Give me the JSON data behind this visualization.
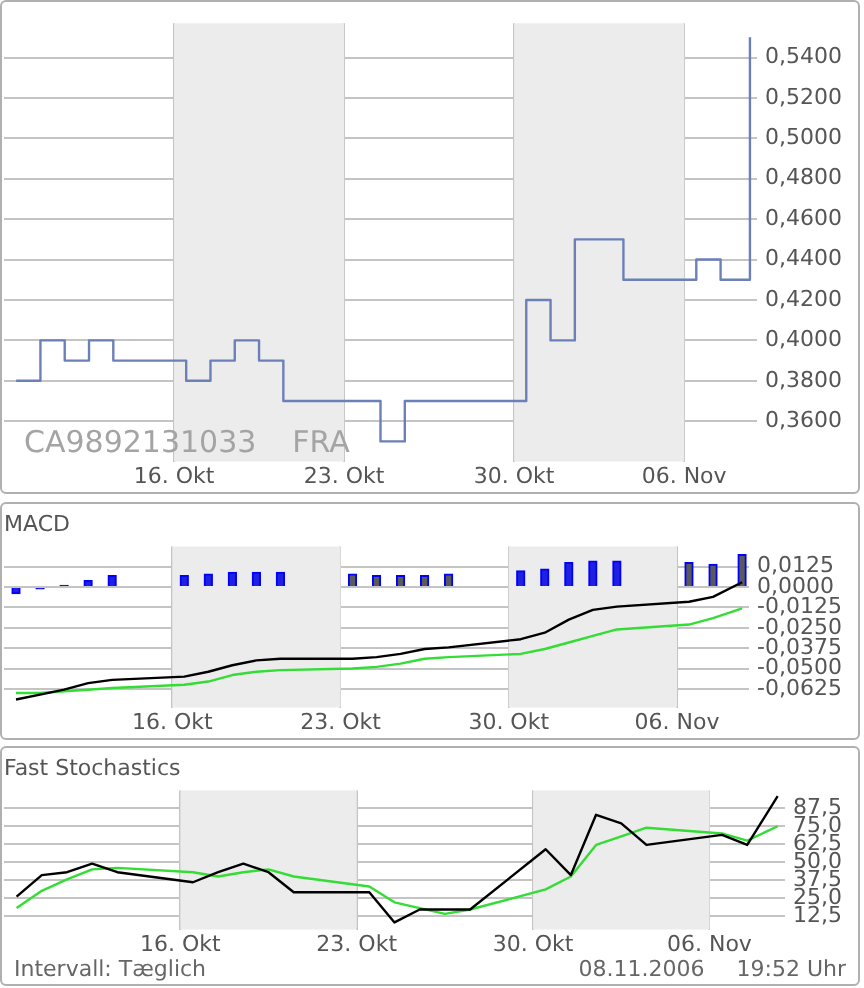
{
  "chart_data": [
    {
      "type": "step",
      "annotations": [
        "CA9892131033",
        "FRA"
      ],
      "x": [
        "2006-10-09T12:00",
        "2006-10-10T12:00",
        "2006-10-11T12:00",
        "2006-10-12T12:00",
        "2006-10-13T12:00",
        "2006-10-16T12:00",
        "2006-10-17T12:00",
        "2006-10-18T12:00",
        "2006-10-19T12:00",
        "2006-10-20T12:00",
        "2006-10-23T12:00",
        "2006-10-24T12:00",
        "2006-10-25T12:00",
        "2006-10-26T12:00",
        "2006-10-27T12:00",
        "2006-10-30T12:00",
        "2006-10-31T12:00",
        "2006-11-01T12:00",
        "2006-11-02T12:00",
        "2006-11-03T12:00",
        "2006-11-06T12:00",
        "2006-11-07T12:00",
        "2006-11-08T17:00"
      ],
      "series": [
        {
          "color": "#6b80b8",
          "values": [
            0.38,
            0.4,
            0.39,
            0.4,
            0.39,
            0.38,
            0.39,
            0.4,
            0.39,
            0.37,
            0.37,
            0.35,
            0.37,
            0.37,
            0.37,
            0.42,
            0.4,
            0.45,
            0.45,
            0.43,
            0.44,
            0.43,
            0.55
          ]
        }
      ],
      "xlim": [
        "2006-10-09",
        "2006-11-09"
      ],
      "xticks": [
        {
          "value": "2006-10-16",
          "label": "16. Okt"
        },
        {
          "value": "2006-10-23",
          "label": "23. Okt"
        },
        {
          "value": "2006-10-30",
          "label": "30. Okt"
        },
        {
          "value": "2006-11-06",
          "label": "06. Nov"
        }
      ],
      "ylim": [
        0.34,
        0.557
      ],
      "yticks": [
        {
          "value": 0.36,
          "label": "0,3600"
        },
        {
          "value": 0.38,
          "label": "0,3800"
        },
        {
          "value": 0.4,
          "label": "0,4000"
        },
        {
          "value": 0.42,
          "label": "0,4200"
        },
        {
          "value": 0.44,
          "label": "0,4400"
        },
        {
          "value": 0.46,
          "label": "0,4600"
        },
        {
          "value": 0.48,
          "label": "0,4800"
        },
        {
          "value": 0.5,
          "label": "0,5000"
        },
        {
          "value": 0.52,
          "label": "0,5200"
        },
        {
          "value": 0.54,
          "label": "0,5400"
        }
      ],
      "bands": [
        {
          "axis": "x",
          "from": "2006-10-16",
          "to": "2006-10-23",
          "color": "#ececec"
        },
        {
          "axis": "x",
          "from": "2006-10-30",
          "to": "2006-11-06",
          "color": "#ececec"
        }
      ],
      "grid": true
    },
    {
      "type": "line",
      "title": "MACD",
      "x": [
        "2006-10-09T12:00",
        "2006-10-10T12:00",
        "2006-10-11T12:00",
        "2006-10-12T12:00",
        "2006-10-13T12:00",
        "2006-10-16T12:00",
        "2006-10-17T12:00",
        "2006-10-18T12:00",
        "2006-10-19T12:00",
        "2006-10-20T12:00",
        "2006-10-23T12:00",
        "2006-10-24T12:00",
        "2006-10-25T12:00",
        "2006-10-26T12:00",
        "2006-10-27T12:00",
        "2006-10-30T12:00",
        "2006-10-31T12:00",
        "2006-11-01T12:00",
        "2006-11-02T12:00",
        "2006-11-03T12:00",
        "2006-11-06T12:00",
        "2006-11-07T12:00",
        "2006-11-08T17:00"
      ],
      "series": [
        {
          "type": "bar",
          "color": "#0000ff",
          "colors": [
            "#2020e0",
            "#2020e0",
            "#2020e0",
            "#2020e0",
            "#2020e0",
            "#2020e0",
            "#2020e0",
            "#2020e0",
            "#2020e0",
            "#2020e0",
            "#5a5a5a",
            "#5a5a5a",
            "#5a5a5a",
            "#5a5a5a",
            "#5a5a5a",
            "#2020e0",
            "#2020e0",
            "#2020e0",
            "#2020e0",
            "#2020e0",
            "#5a5a5a",
            "#5a5a5a",
            "#5a5a5a"
          ],
          "values": [
            -0.004,
            -0.001,
            0.001,
            0.004,
            0.007,
            0.007,
            0.008,
            0.009,
            0.009,
            0.009,
            0.008,
            0.007,
            0.007,
            0.007,
            0.008,
            0.01,
            0.011,
            0.015,
            0.016,
            0.016,
            0.015,
            0.014,
            0.02
          ]
        },
        {
          "color": "#000000",
          "values": [
            -0.069,
            -0.066,
            -0.063,
            -0.059,
            -0.057,
            -0.055,
            -0.052,
            -0.048,
            -0.045,
            -0.044,
            -0.044,
            -0.043,
            -0.041,
            -0.038,
            -0.037,
            -0.032,
            -0.028,
            -0.02,
            -0.014,
            -0.012,
            -0.009,
            -0.006,
            0.003
          ]
        },
        {
          "color": "#33dd33",
          "values": [
            -0.065,
            -0.065,
            -0.064,
            -0.063,
            -0.062,
            -0.06,
            -0.058,
            -0.054,
            -0.052,
            -0.051,
            -0.05,
            -0.049,
            -0.047,
            -0.044,
            -0.043,
            -0.041,
            -0.038,
            -0.034,
            -0.03,
            -0.026,
            -0.023,
            -0.019,
            -0.013
          ]
        }
      ],
      "xlim": [
        "2006-10-09",
        "2006-11-09"
      ],
      "xticks": [
        {
          "value": "2006-10-16",
          "label": "16. Okt"
        },
        {
          "value": "2006-10-23",
          "label": "23. Okt"
        },
        {
          "value": "2006-10-30",
          "label": "30. Okt"
        },
        {
          "value": "2006-11-06",
          "label": "06. Nov"
        }
      ],
      "ylim": [
        -0.074,
        0.025
      ],
      "yticks": [
        {
          "value": -0.0625,
          "label": "-0,0625"
        },
        {
          "value": -0.05,
          "label": "-0,0500"
        },
        {
          "value": -0.0375,
          "label": "-0,0375"
        },
        {
          "value": -0.025,
          "label": "-0,0250"
        },
        {
          "value": -0.0125,
          "label": "-0,0125"
        },
        {
          "value": 0,
          "label": "0,0000"
        },
        {
          "value": 0.0125,
          "label": "0,0125"
        }
      ],
      "bands": [
        {
          "axis": "x",
          "from": "2006-10-16",
          "to": "2006-10-23",
          "color": "#ececec"
        },
        {
          "axis": "x",
          "from": "2006-10-30",
          "to": "2006-11-06",
          "color": "#ececec"
        }
      ],
      "grid": true
    },
    {
      "type": "line",
      "title": "Fast Stochastics",
      "annotations": [
        "Intervall: Tæglich",
        "08.11.2006",
        "19:52 Uhr"
      ],
      "x": [
        "2006-10-09T12:00",
        "2006-10-10T12:00",
        "2006-10-11T12:00",
        "2006-10-12T12:00",
        "2006-10-13T12:00",
        "2006-10-16T12:00",
        "2006-10-17T12:00",
        "2006-10-18T12:00",
        "2006-10-19T12:00",
        "2006-10-20T12:00",
        "2006-10-23T12:00",
        "2006-10-24T12:00",
        "2006-10-25T12:00",
        "2006-10-26T12:00",
        "2006-10-27T12:00",
        "2006-10-30T12:00",
        "2006-10-31T12:00",
        "2006-11-01T12:00",
        "2006-11-02T12:00",
        "2006-11-03T12:00",
        "2006-11-06T12:00",
        "2006-11-07T12:00",
        "2006-11-08T17:00"
      ],
      "series": [
        {
          "color": "#000000",
          "values": [
            26,
            41,
            43,
            49,
            43,
            36,
            43,
            49,
            43,
            29,
            29,
            8,
            17,
            17,
            17,
            59,
            41,
            83,
            77,
            62,
            69,
            62,
            96
          ]
        },
        {
          "color": "#33dd33",
          "values": [
            18,
            30,
            38,
            45,
            46,
            43,
            40,
            43,
            45,
            40,
            33,
            22,
            18,
            14,
            17,
            31,
            40,
            62,
            68,
            74,
            70,
            65,
            75
          ]
        }
      ],
      "xlim": [
        "2006-10-09",
        "2006-11-09"
      ],
      "xticks": [
        {
          "value": "2006-10-16",
          "label": "16. Okt"
        },
        {
          "value": "2006-10-23",
          "label": "23. Okt"
        },
        {
          "value": "2006-10-30",
          "label": "30. Okt"
        },
        {
          "value": "2006-11-06",
          "label": "06. Nov"
        }
      ],
      "ylim": [
        3,
        100
      ],
      "yticks": [
        {
          "value": 12.5,
          "label": "12,5"
        },
        {
          "value": 25,
          "label": "25,0"
        },
        {
          "value": 37.5,
          "label": "37,5"
        },
        {
          "value": 50,
          "label": "50,0"
        },
        {
          "value": 62.5,
          "label": "62,5"
        },
        {
          "value": 75,
          "label": "75,0"
        },
        {
          "value": 87.5,
          "label": "87,5"
        }
      ],
      "bands": [
        {
          "axis": "x",
          "from": "2006-10-16",
          "to": "2006-10-23",
          "color": "#ececec"
        },
        {
          "axis": "x",
          "from": "2006-10-30",
          "to": "2006-11-06",
          "color": "#ececec"
        }
      ],
      "grid": true
    }
  ]
}
